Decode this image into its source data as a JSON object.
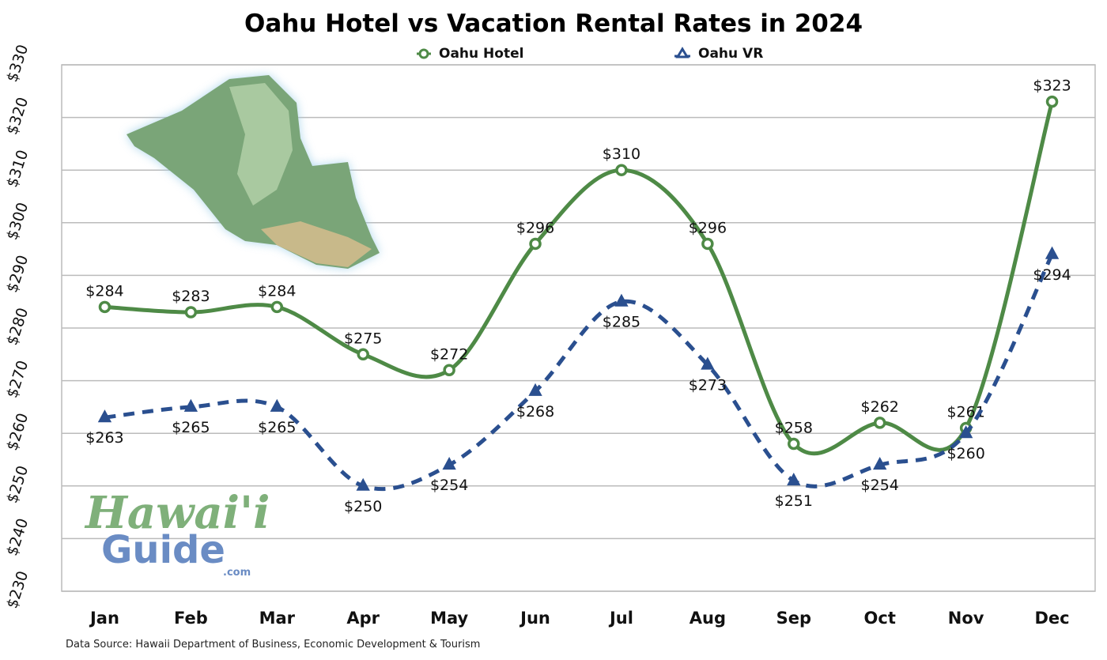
{
  "chart_data": {
    "type": "line",
    "title": "Oahu Hotel vs Vacation Rental Rates in 2024",
    "categories": [
      "Jan",
      "Feb",
      "Mar",
      "Apr",
      "May",
      "Jun",
      "Jul",
      "Aug",
      "Sep",
      "Oct",
      "Nov",
      "Dec"
    ],
    "series": [
      {
        "name": "Oahu Hotel",
        "color": "#4e8a46",
        "marker": "circle",
        "dash": false,
        "label_position": "above",
        "values": [
          284,
          283,
          284,
          275,
          272,
          296,
          310,
          296,
          258,
          262,
          261,
          323
        ]
      },
      {
        "name": "Oahu VR",
        "color": "#2a4f8f",
        "marker": "triangle",
        "dash": true,
        "label_position": "below",
        "values": [
          263,
          265,
          265,
          250,
          254,
          268,
          285,
          273,
          251,
          254,
          260,
          294
        ]
      }
    ],
    "ylim": [
      230,
      330
    ],
    "yticks": [
      230,
      240,
      250,
      260,
      270,
      280,
      290,
      300,
      310,
      320,
      330
    ],
    "ytick_prefix": "$",
    "xlabel": "",
    "ylabel": "",
    "grid": true,
    "legend_position": "top-center",
    "source": "Data Source: Hawaii Department of Business, Economic Development & Tourism"
  },
  "logo": {
    "line1": "Hawai'i",
    "line2": "Guide",
    "line3": ".com"
  }
}
